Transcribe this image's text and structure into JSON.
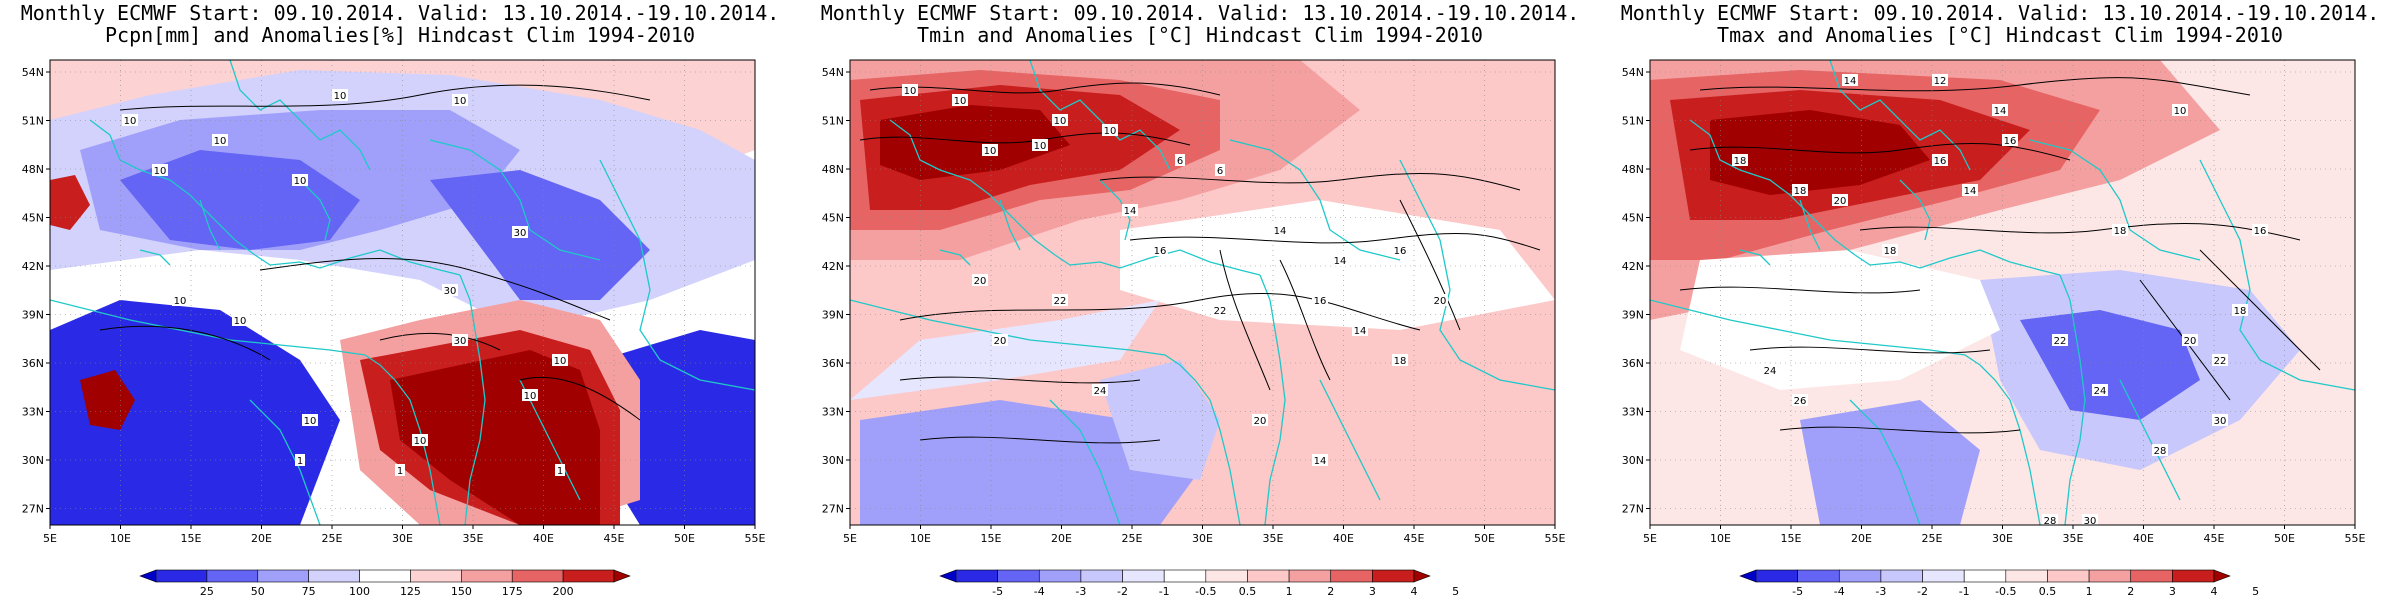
{
  "panels": [
    {
      "title_line1": "Monthly ECMWF Start: 09.10.2014. Valid: 13.10.2014.-19.10.2014.",
      "title_line2": "Pcpn[mm] and Anomalies[%] Hindcast Clim 1994-2010",
      "colorbar": {
        "labels": [
          "25",
          "50",
          "75",
          "100",
          "125",
          "150",
          "175",
          "200"
        ],
        "colors": [
          "#0000c8",
          "#2a2ae6",
          "#6464f5",
          "#a0a0fa",
          "#d2d2fc",
          "#ffffff",
          "#fcd2d2",
          "#f5a0a0",
          "#e66464",
          "#c81e1e",
          "#a00000"
        ]
      },
      "contour_labels": [
        "10",
        "10",
        "10",
        "10",
        "30",
        "10",
        "10",
        "10",
        "10",
        "30",
        "10",
        "10",
        "10",
        "1",
        "1",
        "1",
        "30",
        "10"
      ]
    },
    {
      "title_line1": "Monthly ECMWF Start: 09.10.2014. Valid: 13.10.2014.-19.10.2014.",
      "title_line2": "Tmin and Anomalies [°C] Hindcast Clim 1994-2010",
      "colorbar": {
        "labels": [
          "-5",
          "-4",
          "-3",
          "-2",
          "-1",
          "-0.5",
          "0.5",
          "1",
          "2",
          "3",
          "4",
          "5"
        ],
        "colors": [
          "#0000c8",
          "#2a2ae6",
          "#6464f5",
          "#a0a0fa",
          "#c8c8fc",
          "#e6e6fe",
          "#ffffff",
          "#fde6e6",
          "#fcc8c8",
          "#f5a0a0",
          "#e66464",
          "#c81e1e",
          "#a00000"
        ]
      },
      "contour_labels": [
        "10",
        "10",
        "10",
        "10",
        "6",
        "10",
        "10",
        "6",
        "14",
        "16",
        "14",
        "14",
        "16",
        "20",
        "20",
        "22",
        "24",
        "22",
        "16",
        "14",
        "20",
        "18",
        "20",
        "14"
      ]
    },
    {
      "title_line1": "Monthly ECMWF Start: 09.10.2014. Valid: 13.10.2014.-19.10.2014.",
      "title_line2": "Tmax and Anomalies [°C] Hindcast Clim 1994-2010",
      "colorbar": {
        "labels": [
          "-5",
          "-4",
          "-3",
          "-2",
          "-1",
          "-0.5",
          "0.5",
          "1",
          "2",
          "3",
          "4",
          "5"
        ],
        "colors": [
          "#0000c8",
          "#2a2ae6",
          "#6464f5",
          "#a0a0fa",
          "#c8c8fc",
          "#e6e6fe",
          "#ffffff",
          "#fde6e6",
          "#fcc8c8",
          "#f5a0a0",
          "#e66464",
          "#c81e1e",
          "#a00000"
        ]
      },
      "contour_labels": [
        "14",
        "12",
        "14",
        "10",
        "16",
        "18",
        "16",
        "18",
        "20",
        "14",
        "18",
        "18",
        "16",
        "22",
        "24",
        "20",
        "22",
        "24",
        "26",
        "28",
        "30",
        "28",
        "30",
        "18"
      ]
    }
  ],
  "map": {
    "lat_labels": [
      "54N",
      "51N",
      "48N",
      "45N",
      "42N",
      "39N",
      "36N",
      "33N",
      "30N",
      "27N"
    ],
    "lon_labels": [
      "5E",
      "10E",
      "15E",
      "20E",
      "25E",
      "30E",
      "35E",
      "40E",
      "45E",
      "50E",
      "55E"
    ]
  }
}
